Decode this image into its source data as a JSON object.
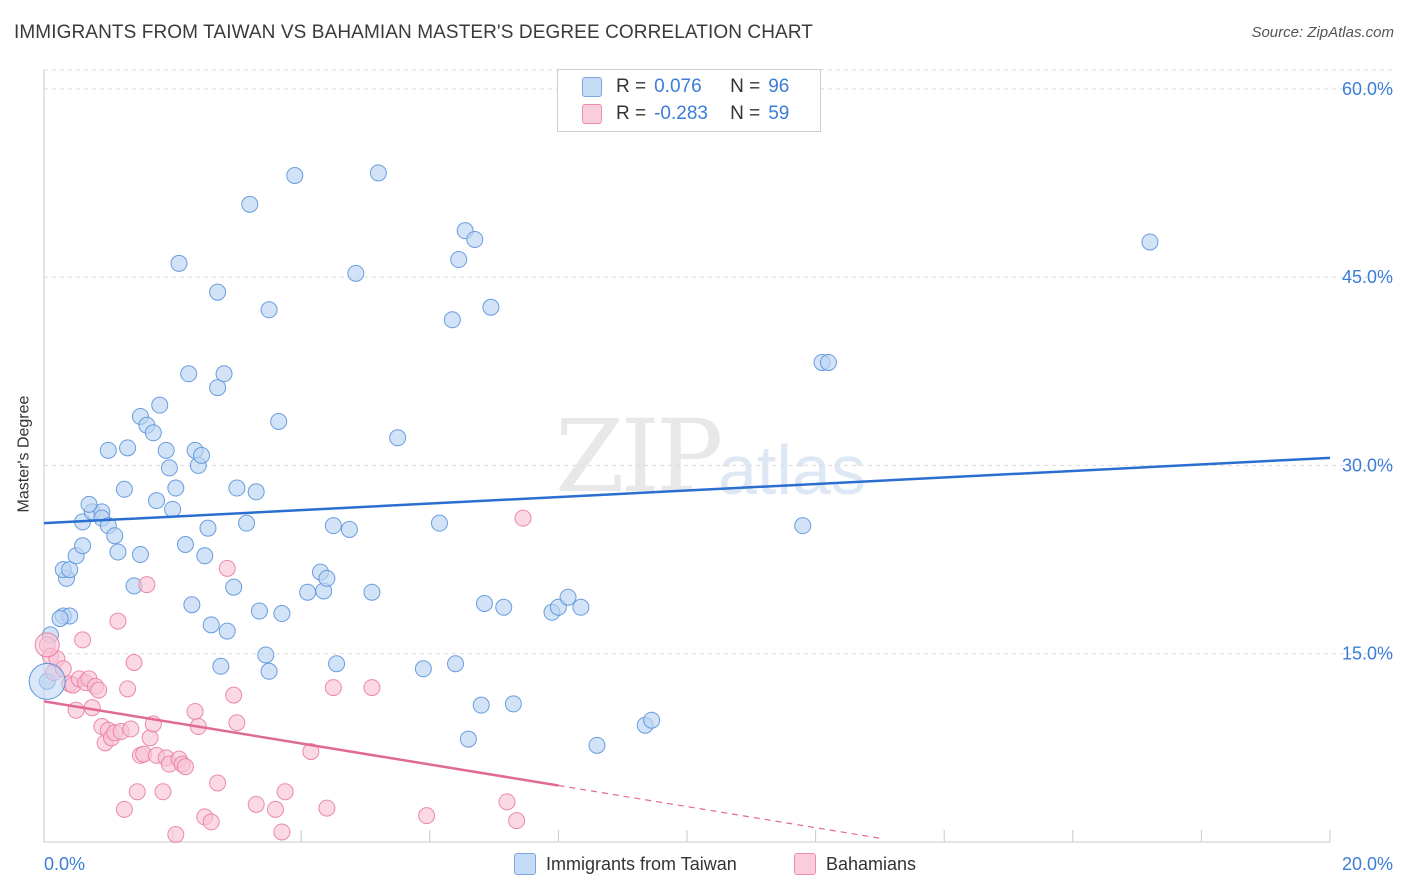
{
  "title": "IMMIGRANTS FROM TAIWAN VS BAHAMIAN MASTER'S DEGREE CORRELATION CHART",
  "source": "Source: ZipAtlas.com",
  "watermark": {
    "zip": "ZIP",
    "atlas": "atlas"
  },
  "legend": {
    "rows": [
      {
        "r_label": "R =",
        "r_value": "0.076",
        "n_label": "N =",
        "n_value": "96",
        "color": "#b3cff2"
      },
      {
        "r_label": "R =",
        "r_value": "-0.283",
        "n_label": "N =",
        "n_value": "59",
        "color": "#f7bccf"
      }
    ]
  },
  "bottom_legend": [
    {
      "label": "Immigrants from Taiwan",
      "color": "#b3cff2"
    },
    {
      "label": "Bahamians",
      "color": "#f7bccf"
    }
  ],
  "chart_data": {
    "type": "scatter",
    "title": "IMMIGRANTS FROM TAIWAN VS BAHAMIAN MASTER'S DEGREE CORRELATION CHART",
    "xlabel": "",
    "ylabel": "Master's Degree",
    "xlim": [
      0,
      20
    ],
    "ylim": [
      0,
      61.5
    ],
    "x_tick_labels": [
      {
        "value": 0,
        "label": "0.0%"
      },
      {
        "value": 20,
        "label": "20.0%"
      }
    ],
    "y_tick_labels": [
      {
        "value": 15,
        "label": "15.0%"
      },
      {
        "value": 30,
        "label": "30.0%"
      },
      {
        "value": 45,
        "label": "45.0%"
      },
      {
        "value": 60,
        "label": "60.0%"
      }
    ],
    "series": [
      {
        "name": "Immigrants from Taiwan",
        "color": "#5b93dc",
        "fill": "#bcd4f2",
        "trend": {
          "x0": 0,
          "y0": 25.4,
          "x1": 20,
          "y1": 30.6,
          "color": "#2a6fd0"
        },
        "points": [
          [
            0.05,
            12.8
          ],
          [
            0.1,
            16.5
          ],
          [
            0.3,
            18.0
          ],
          [
            0.4,
            18.0
          ],
          [
            0.25,
            17.8
          ],
          [
            0.35,
            21.0
          ],
          [
            0.3,
            21.7
          ],
          [
            0.4,
            21.7
          ],
          [
            0.5,
            22.8
          ],
          [
            0.6,
            23.6
          ],
          [
            0.6,
            25.5
          ],
          [
            0.75,
            26.3
          ],
          [
            0.9,
            26.3
          ],
          [
            0.9,
            25.8
          ],
          [
            0.7,
            26.9
          ],
          [
            1.0,
            25.2
          ],
          [
            1.1,
            24.4
          ],
          [
            1.15,
            23.1
          ],
          [
            1.0,
            31.2
          ],
          [
            1.25,
            28.1
          ],
          [
            1.3,
            31.4
          ],
          [
            1.4,
            20.4
          ],
          [
            1.5,
            22.9
          ],
          [
            1.5,
            33.9
          ],
          [
            1.6,
            33.2
          ],
          [
            1.7,
            32.6
          ],
          [
            1.8,
            34.8
          ],
          [
            1.75,
            27.2
          ],
          [
            1.9,
            31.2
          ],
          [
            1.95,
            29.8
          ],
          [
            2.0,
            26.5
          ],
          [
            2.05,
            28.2
          ],
          [
            2.1,
            46.1
          ],
          [
            2.2,
            23.7
          ],
          [
            2.25,
            37.3
          ],
          [
            2.3,
            18.9
          ],
          [
            2.35,
            31.2
          ],
          [
            2.4,
            30.0
          ],
          [
            2.45,
            30.8
          ],
          [
            2.5,
            22.8
          ],
          [
            2.55,
            25.0
          ],
          [
            2.6,
            17.3
          ],
          [
            2.7,
            36.2
          ],
          [
            2.7,
            43.8
          ],
          [
            2.75,
            14.0
          ],
          [
            2.8,
            37.3
          ],
          [
            2.85,
            16.8
          ],
          [
            2.95,
            20.3
          ],
          [
            3.0,
            28.2
          ],
          [
            3.15,
            25.4
          ],
          [
            3.2,
            50.8
          ],
          [
            3.3,
            27.9
          ],
          [
            3.35,
            18.4
          ],
          [
            3.45,
            14.9
          ],
          [
            3.5,
            13.6
          ],
          [
            3.5,
            42.4
          ],
          [
            3.65,
            33.5
          ],
          [
            3.7,
            18.2
          ],
          [
            3.9,
            53.1
          ],
          [
            4.1,
            19.9
          ],
          [
            4.3,
            21.5
          ],
          [
            4.35,
            20.0
          ],
          [
            4.4,
            21.0
          ],
          [
            4.5,
            25.2
          ],
          [
            4.55,
            14.2
          ],
          [
            4.75,
            24.9
          ],
          [
            4.85,
            45.3
          ],
          [
            5.1,
            19.9
          ],
          [
            5.2,
            53.3
          ],
          [
            5.5,
            32.2
          ],
          [
            5.9,
            13.8
          ],
          [
            6.15,
            25.4
          ],
          [
            6.35,
            41.6
          ],
          [
            6.4,
            14.2
          ],
          [
            6.45,
            46.4
          ],
          [
            6.55,
            48.7
          ],
          [
            6.6,
            8.2
          ],
          [
            6.7,
            48.0
          ],
          [
            6.8,
            10.9
          ],
          [
            6.85,
            19.0
          ],
          [
            6.95,
            42.6
          ],
          [
            7.15,
            18.7
          ],
          [
            7.3,
            11.0
          ],
          [
            7.9,
            18.3
          ],
          [
            8.0,
            18.7
          ],
          [
            8.15,
            19.5
          ],
          [
            8.35,
            18.7
          ],
          [
            8.6,
            7.7
          ],
          [
            9.35,
            9.3
          ],
          [
            9.45,
            9.7
          ],
          [
            11.8,
            25.2
          ],
          [
            12.1,
            38.2
          ],
          [
            12.2,
            38.2
          ],
          [
            17.2,
            47.8
          ]
        ]
      },
      {
        "name": "Bahamians",
        "color": "#ea7ea2",
        "fill": "#f7c3d5",
        "trend": {
          "x0": 0,
          "y0": 11.2,
          "x1": 8.0,
          "y1": 4.5,
          "dash_x1": 13.0,
          "dash_y1": 0.3,
          "color": "#e06a95"
        },
        "points": [
          [
            0.05,
            15.7
          ],
          [
            0.1,
            14.8
          ],
          [
            0.15,
            13.5
          ],
          [
            0.2,
            14.6
          ],
          [
            0.3,
            13.8
          ],
          [
            0.4,
            12.6
          ],
          [
            0.45,
            12.5
          ],
          [
            0.5,
            10.5
          ],
          [
            0.55,
            13.0
          ],
          [
            0.6,
            16.1
          ],
          [
            0.65,
            12.7
          ],
          [
            0.7,
            13.0
          ],
          [
            0.75,
            10.7
          ],
          [
            0.8,
            12.4
          ],
          [
            0.85,
            12.1
          ],
          [
            0.9,
            9.2
          ],
          [
            0.95,
            7.9
          ],
          [
            1.0,
            8.9
          ],
          [
            1.05,
            8.3
          ],
          [
            1.1,
            8.7
          ],
          [
            1.15,
            17.6
          ],
          [
            1.2,
            8.8
          ],
          [
            1.25,
            2.6
          ],
          [
            1.3,
            12.2
          ],
          [
            1.35,
            9.0
          ],
          [
            1.4,
            14.3
          ],
          [
            1.45,
            4.0
          ],
          [
            1.5,
            6.9
          ],
          [
            1.55,
            7.0
          ],
          [
            1.6,
            20.5
          ],
          [
            1.65,
            8.3
          ],
          [
            1.7,
            9.4
          ],
          [
            1.75,
            6.9
          ],
          [
            1.85,
            4.0
          ],
          [
            1.9,
            6.7
          ],
          [
            1.95,
            6.2
          ],
          [
            2.05,
            0.6
          ],
          [
            2.1,
            6.6
          ],
          [
            2.15,
            6.2
          ],
          [
            2.2,
            6.0
          ],
          [
            2.35,
            10.4
          ],
          [
            2.4,
            9.2
          ],
          [
            2.5,
            2.0
          ],
          [
            2.6,
            1.6
          ],
          [
            2.7,
            4.7
          ],
          [
            2.85,
            21.8
          ],
          [
            2.95,
            11.7
          ],
          [
            3.0,
            9.5
          ],
          [
            3.3,
            3.0
          ],
          [
            3.6,
            2.6
          ],
          [
            3.7,
            0.8
          ],
          [
            3.75,
            4.0
          ],
          [
            4.15,
            7.2
          ],
          [
            4.4,
            2.7
          ],
          [
            4.5,
            12.3
          ],
          [
            5.1,
            12.3
          ],
          [
            5.95,
            2.1
          ],
          [
            7.2,
            3.2
          ],
          [
            7.35,
            1.7
          ],
          [
            7.45,
            25.8
          ]
        ]
      }
    ]
  }
}
